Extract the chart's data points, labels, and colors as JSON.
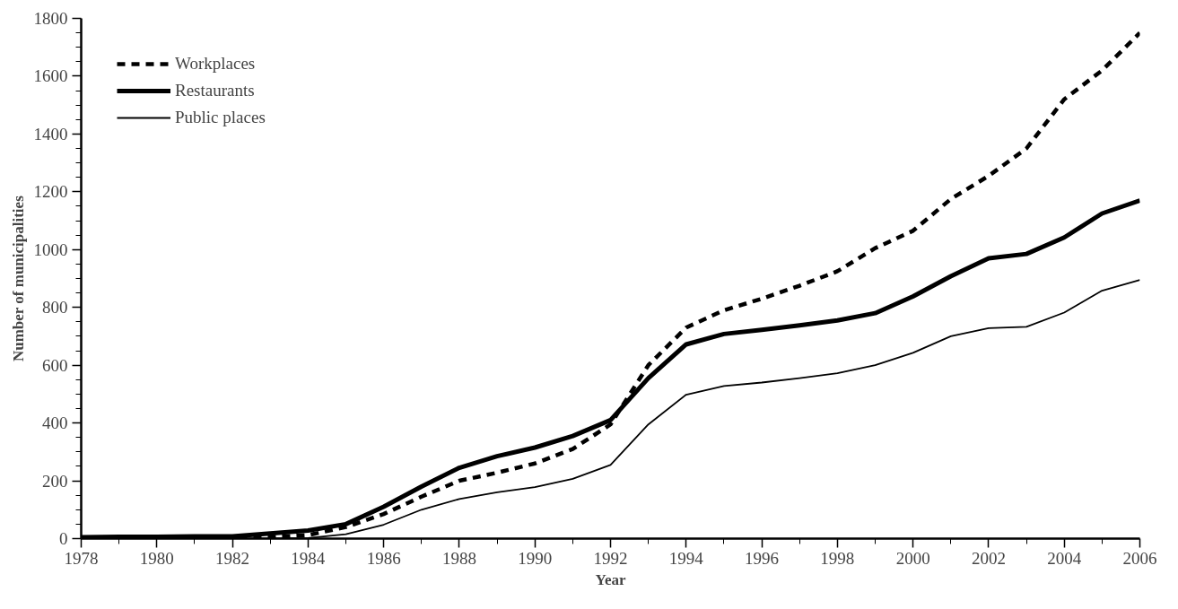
{
  "chart_data": {
    "type": "line",
    "xlabel": "Year",
    "ylabel": "Number of municipalities",
    "x": [
      1978,
      1979,
      1980,
      1981,
      1982,
      1983,
      1984,
      1985,
      1986,
      1987,
      1988,
      1989,
      1990,
      1991,
      1992,
      1993,
      1994,
      1995,
      1996,
      1997,
      1998,
      1999,
      2000,
      2001,
      2002,
      2003,
      2004,
      2005,
      2006
    ],
    "series": [
      {
        "name": "Workplaces",
        "color": "#000000",
        "line_style": "dashed",
        "values": [
          0,
          0,
          0,
          0,
          2,
          5,
          12,
          40,
          85,
          145,
          200,
          228,
          260,
          310,
          395,
          600,
          730,
          790,
          830,
          875,
          925,
          1005,
          1065,
          1175,
          1255,
          1350,
          1520,
          1620,
          1750
        ]
      },
      {
        "name": "Restaurants",
        "color": "#000000",
        "line_style": "solid",
        "values": [
          5,
          6,
          6,
          8,
          8,
          18,
          28,
          50,
          110,
          180,
          245,
          285,
          315,
          355,
          410,
          555,
          672,
          708,
          722,
          738,
          755,
          780,
          838,
          908,
          970,
          985,
          1042,
          1125,
          1170
        ]
      },
      {
        "name": "Public places",
        "color": "#000000",
        "line_style": "solid",
        "values": [
          0,
          0,
          0,
          0,
          0,
          0,
          2,
          15,
          48,
          100,
          137,
          160,
          178,
          207,
          255,
          395,
          498,
          528,
          540,
          555,
          572,
          600,
          643,
          700,
          728,
          733,
          782,
          858,
          895
        ]
      }
    ],
    "xlim": [
      1978,
      2006
    ],
    "xticks": [
      1978,
      1980,
      1982,
      1984,
      1986,
      1988,
      1990,
      1992,
      1994,
      1996,
      1998,
      2000,
      2002,
      2004,
      2006
    ],
    "ylim": [
      0,
      1800
    ],
    "yticks": [
      0,
      200,
      400,
      600,
      800,
      1000,
      1200,
      1400,
      1600,
      1800
    ],
    "grid": false,
    "legend": "top left",
    "marker": "none"
  }
}
